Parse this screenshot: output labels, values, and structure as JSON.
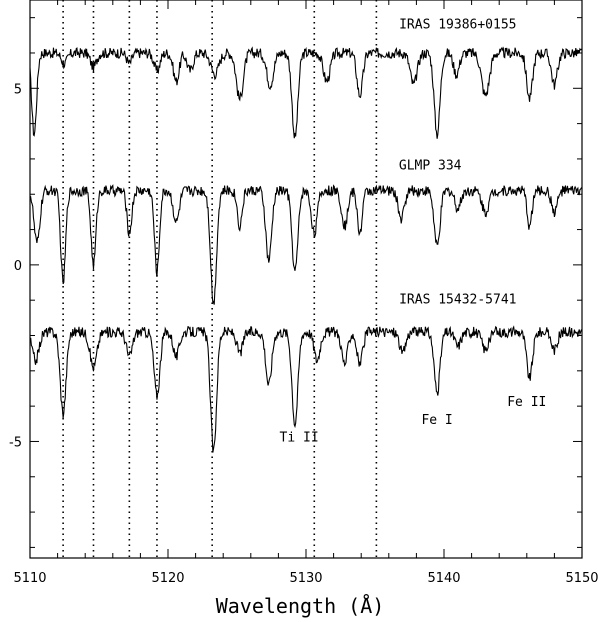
{
  "chart_data": {
    "type": "line",
    "xlabel": "Wavelength (Å)",
    "ylabel": "",
    "xlim": [
      5110,
      5150
    ],
    "ylim": [
      -8.3,
      7.5
    ],
    "x_ticks": [
      5110,
      5120,
      5130,
      5140,
      5150
    ],
    "y_ticks": [
      -5,
      0,
      5
    ],
    "grid": false,
    "vertical_marker_lines_x": [
      5112.4,
      5114.6,
      5117.2,
      5119.2,
      5123.2,
      5130.6,
      5135.1
    ],
    "series": [
      {
        "name": "IRAS 19386+0155",
        "continuum": 6.0,
        "lines": [
          [
            5110.3,
            2.3,
            0.25
          ],
          [
            5112.5,
            0.3,
            0.3
          ],
          [
            5114.6,
            0.4,
            0.3
          ],
          [
            5117.2,
            0.3,
            0.25
          ],
          [
            5119.2,
            0.5,
            0.3
          ],
          [
            5120.6,
            0.8,
            0.3
          ],
          [
            5121.6,
            0.5,
            0.3
          ],
          [
            5123.4,
            0.6,
            0.4
          ],
          [
            5125.2,
            1.3,
            0.35
          ],
          [
            5127.4,
            0.9,
            0.35
          ],
          [
            5129.2,
            2.4,
            0.3
          ],
          [
            5131.5,
            0.8,
            0.35
          ],
          [
            5133.9,
            1.2,
            0.3
          ],
          [
            5137.8,
            0.9,
            0.35
          ],
          [
            5139.5,
            2.3,
            0.3
          ],
          [
            5140.9,
            0.6,
            0.3
          ],
          [
            5143.0,
            1.2,
            0.4
          ],
          [
            5146.2,
            1.3,
            0.3
          ],
          [
            5148.0,
            0.9,
            0.3
          ]
        ]
      },
      {
        "name": "GLMP 334",
        "continuum": 2.1,
        "lines": [
          [
            5110.5,
            1.5,
            0.3
          ],
          [
            5112.4,
            2.6,
            0.25
          ],
          [
            5114.6,
            2.1,
            0.25
          ],
          [
            5117.2,
            1.2,
            0.25
          ],
          [
            5119.2,
            2.3,
            0.25
          ],
          [
            5120.6,
            0.9,
            0.3
          ],
          [
            5123.3,
            3.2,
            0.3
          ],
          [
            5125.2,
            1.0,
            0.25
          ],
          [
            5127.3,
            2.0,
            0.3
          ],
          [
            5129.2,
            2.3,
            0.3
          ],
          [
            5130.6,
            1.2,
            0.3
          ],
          [
            5132.8,
            1.0,
            0.3
          ],
          [
            5133.9,
            1.2,
            0.25
          ],
          [
            5136.9,
            0.8,
            0.3
          ],
          [
            5139.5,
            1.6,
            0.3
          ],
          [
            5141.0,
            0.5,
            0.3
          ],
          [
            5143.0,
            0.6,
            0.35
          ],
          [
            5146.2,
            1.0,
            0.25
          ],
          [
            5148.0,
            0.6,
            0.3
          ]
        ]
      },
      {
        "name": "IRAS 15432-5741",
        "continuum": -1.9,
        "lines": [
          [
            5110.4,
            0.8,
            0.35
          ],
          [
            5112.4,
            2.3,
            0.3
          ],
          [
            5114.6,
            1.0,
            0.35
          ],
          [
            5117.2,
            0.7,
            0.3
          ],
          [
            5119.2,
            1.8,
            0.3
          ],
          [
            5120.6,
            0.7,
            0.3
          ],
          [
            5123.3,
            3.4,
            0.3
          ],
          [
            5125.2,
            0.6,
            0.3
          ],
          [
            5127.3,
            1.5,
            0.3
          ],
          [
            5129.2,
            2.6,
            0.3
          ],
          [
            5130.8,
            0.8,
            0.3
          ],
          [
            5132.8,
            0.9,
            0.3
          ],
          [
            5133.9,
            0.9,
            0.3
          ],
          [
            5137.0,
            0.6,
            0.3
          ],
          [
            5139.5,
            1.7,
            0.3
          ],
          [
            5141.0,
            0.4,
            0.3
          ],
          [
            5143.0,
            0.5,
            0.35
          ],
          [
            5146.2,
            1.3,
            0.3
          ],
          [
            5148.0,
            0.5,
            0.3
          ]
        ]
      }
    ],
    "annotations": [
      {
        "text": "IRAS 19386+0155",
        "x": 5141,
        "y": 6.7
      },
      {
        "text": "GLMP 334",
        "x": 5139,
        "y": 2.7
      },
      {
        "text": "IRAS 15432-5741",
        "x": 5141,
        "y": -1.1
      },
      {
        "text": "Ti II",
        "x": 5129.5,
        "y": -5.0
      },
      {
        "text": "Fe I",
        "x": 5139.5,
        "y": -4.5
      },
      {
        "text": "Fe II",
        "x": 5146,
        "y": -4.0
      }
    ]
  }
}
